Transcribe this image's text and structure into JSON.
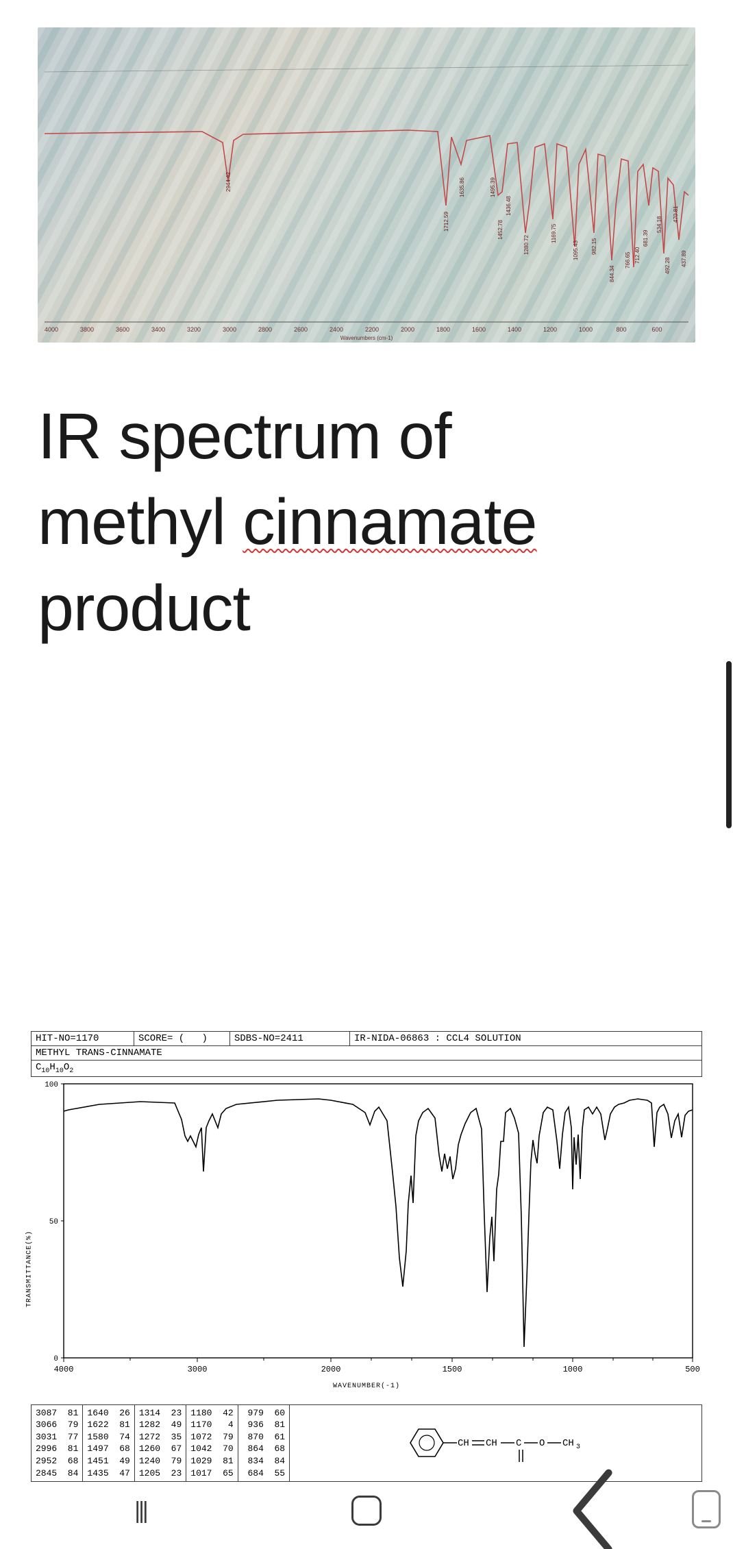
{
  "caption": {
    "line1": "IR spectrum of",
    "line2_a": "methyl ",
    "line2_b_wavy": "cinnamate",
    "line3": "product"
  },
  "top_spectrum": {
    "type": "line",
    "xlabel": "Wavenumbers (cm-1)",
    "xlim": [
      4000,
      400
    ],
    "xtick_step": 200,
    "line_color": "#c24a4a",
    "axis_color": "#6b6b6b",
    "moire_bg": true,
    "peak_labels": [
      "2944.42",
      "1712.59",
      "1635.86",
      "1495.39",
      "1452.78",
      "1436.48",
      "1280.72",
      "1169.75",
      "1095.43",
      "982.15",
      "844.34",
      "766.65",
      "712.40",
      "681.39",
      "534.18",
      "492.28",
      "470.81",
      "437.89"
    ],
    "label_color": "#6b1a1a",
    "label_fontsize": 8
  },
  "reference": {
    "header": {
      "hit": "HIT-NO=1170",
      "score": "SCORE=   (",
      "score_close": ")",
      "sdbs": "SDBS-NO=2411",
      "irnida": "IR-NIDA-06863 : CCL4 SOLUTION"
    },
    "compound_name": "METHYL TRANS-CINNAMATE",
    "formula_html": "C<sub>10</sub>H<sub>10</sub>O<sub>2</sub>",
    "plot": {
      "type": "line",
      "ylabel": "TRANSMITTANCE(%)",
      "xlabel": "WAVENUMBER(-1)",
      "ylim": [
        0,
        100
      ],
      "xlim": [
        4000,
        400
      ],
      "xticks": [
        4000,
        3000,
        2000,
        1500,
        1000,
        500
      ],
      "yticks": [
        0,
        50,
        100
      ],
      "line_color": "#000000",
      "axis_color": "#000000"
    },
    "peak_table": {
      "columns": [
        [
          [
            "3087",
            81
          ],
          [
            "3066",
            79
          ],
          [
            "3031",
            77
          ],
          [
            "2996",
            81
          ],
          [
            "2952",
            68
          ],
          [
            "2845",
            84
          ]
        ],
        [
          [
            "1640",
            26
          ],
          [
            "1622",
            81
          ],
          [
            "1580",
            74
          ],
          [
            "1497",
            68
          ],
          [
            "1451",
            49
          ],
          [
            "1435",
            47
          ]
        ],
        [
          [
            "1314",
            23
          ],
          [
            "1282",
            49
          ],
          [
            "1272",
            35
          ],
          [
            "1260",
            67
          ],
          [
            "1240",
            79
          ],
          [
            "1205",
            23
          ]
        ],
        [
          [
            "1180",
            42
          ],
          [
            "1170",
            4
          ],
          [
            "1072",
            79
          ],
          [
            "1042",
            70
          ],
          [
            "1029",
            81
          ],
          [
            "1017",
            65
          ]
        ],
        [
          [
            "979",
            60
          ],
          [
            "936",
            81
          ],
          [
            "870",
            61
          ],
          [
            "864",
            68
          ],
          [
            "834",
            84
          ],
          [
            "684",
            55
          ]
        ]
      ]
    },
    "structure_text": "CH=CH—C—O—CH₃"
  },
  "navbar": {
    "recent_label": "|||"
  },
  "colors": {
    "text": "#1a1a1a",
    "border": "#3a3a3a",
    "nav_icon": "#3b3b3b",
    "nav_panel": "#8a8a8a",
    "bg": "#ffffff"
  }
}
